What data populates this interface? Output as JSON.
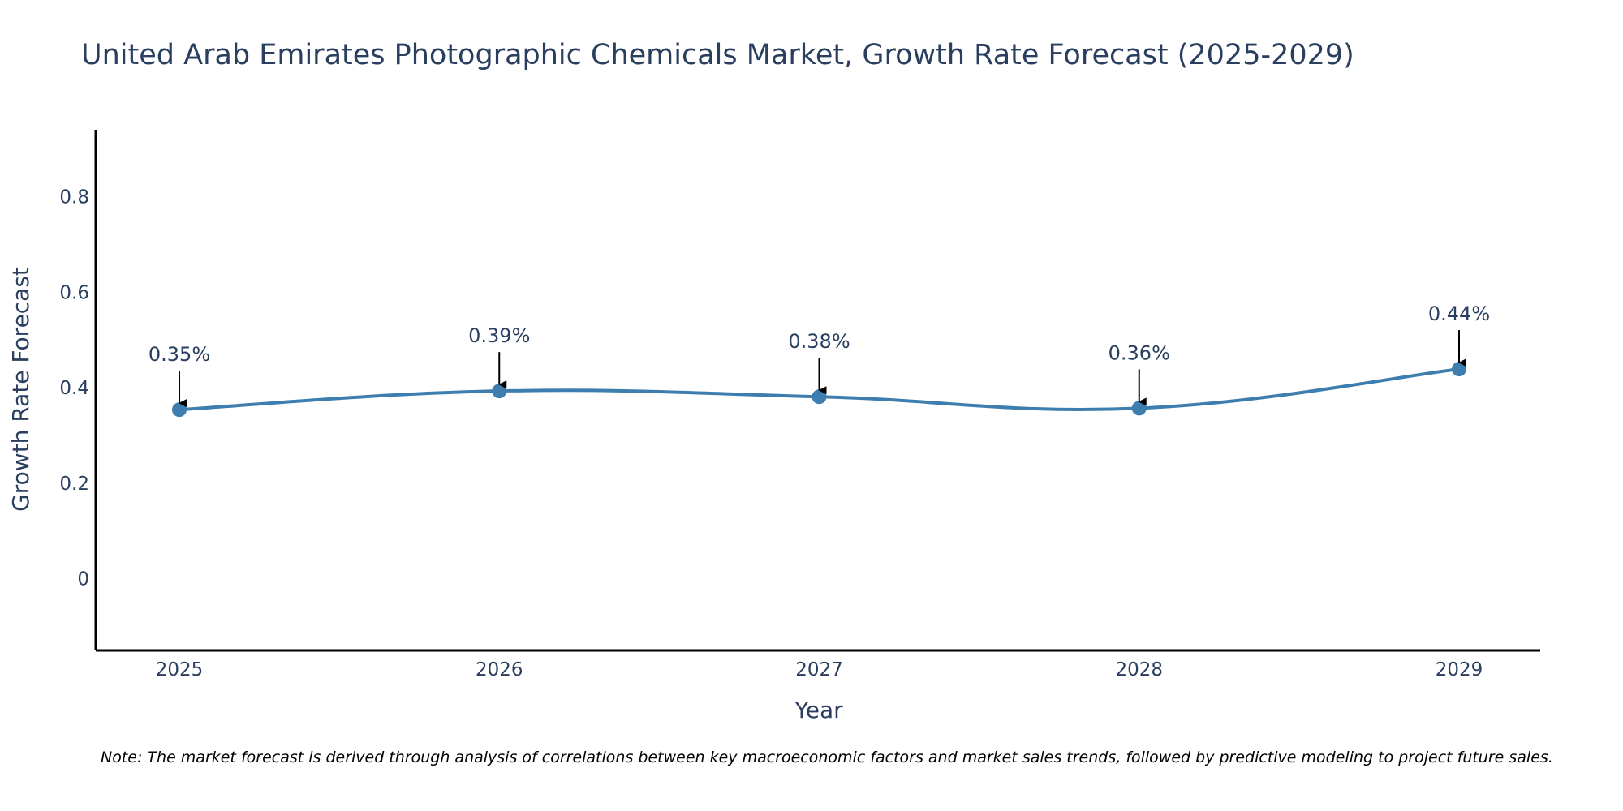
{
  "chart_data": {
    "type": "line",
    "title": "United Arab Emirates Photographic Chemicals Market, Growth Rate Forecast (2025-2029)",
    "xlabel": "Year",
    "ylabel": "Growth Rate Forecast",
    "categories": [
      "2025",
      "2026",
      "2027",
      "2028",
      "2029"
    ],
    "values": [
      0.354,
      0.393,
      0.381,
      0.357,
      0.439
    ],
    "data_labels": [
      "0.35%",
      "0.39%",
      "0.38%",
      "0.36%",
      "0.44%"
    ],
    "y_ticks": [
      0,
      0.2,
      0.4,
      0.6,
      0.8
    ],
    "y_tick_labels": [
      "0",
      "0.2",
      "0.4",
      "0.6",
      "0.8"
    ],
    "ylim": [
      -0.15,
      0.94
    ],
    "grid": false,
    "line_shape": "spline",
    "series_color": "#3d7eaf",
    "annotation_arrow_color": "#000000",
    "note": "Note: The market forecast is derived through analysis of correlations between key macroeconomic factors and market sales trends, followed by predictive modeling to project future sales."
  }
}
